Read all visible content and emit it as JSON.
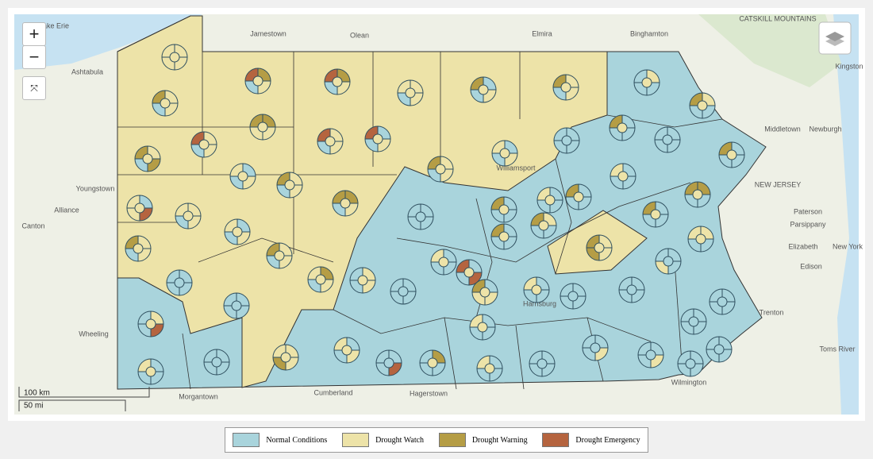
{
  "controls": {
    "zoom_in": "+",
    "zoom_out": "−"
  },
  "place_labels": [
    "Lake Erie",
    "Jamestown",
    "Olean",
    "Elmira",
    "Binghamton",
    "Ashtabula",
    "Middletown",
    "Newburgh",
    "Youngstown",
    "Alliance",
    "Canton",
    "Wheeling",
    "Morgantown",
    "Cumberland",
    "Hagerstown",
    "Wilmington",
    "Trenton",
    "Paterson",
    "Parsippany",
    "Elizabeth",
    "New York",
    "Edison",
    "Toms River",
    "NEW JERSEY",
    "CATSKILL MOUNTAINS",
    "Kingston",
    "Williamsport",
    "Harrisburg"
  ],
  "scale": {
    "km": "100 km",
    "mi": "50 mi"
  },
  "legend": [
    {
      "label": "Normal Conditions",
      "color": "#a9d4dc"
    },
    {
      "label": "Drought Watch",
      "color": "#ede3a8"
    },
    {
      "label": "Drought Warning",
      "color": "#b59d45"
    },
    {
      "label": "Drought Emergency",
      "color": "#b5643f"
    }
  ]
}
